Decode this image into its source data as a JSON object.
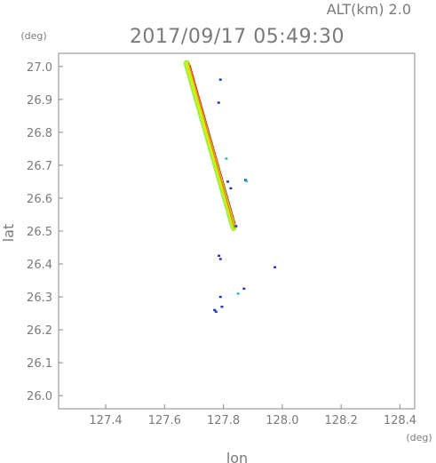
{
  "header": {
    "alt_label": "ALT(km) 2.0",
    "datetime": "2017/09/17 05:49:30"
  },
  "chart_data": {
    "type": "scatter",
    "xlabel": "lon",
    "ylabel": "lat",
    "x_unit": "(deg)",
    "y_unit": "(deg)",
    "xlim": [
      127.24,
      128.45
    ],
    "ylim": [
      25.96,
      27.04
    ],
    "x_ticks": [
      "127.4",
      "127.6",
      "127.8",
      "128.0",
      "128.2",
      "128.4"
    ],
    "y_ticks": [
      "26.0",
      "26.1",
      "26.2",
      "26.3",
      "26.4",
      "26.5",
      "26.6",
      "26.7",
      "26.8",
      "26.9",
      "27.0"
    ],
    "grid": false,
    "colors": {
      "band_green": "#88ee33",
      "band_yellow": "#ddee22",
      "edge_red": "#dd2222",
      "echo_blue": "#2233cc",
      "echo_cyan": "#22bbcc"
    },
    "series": [
      {
        "kind": "band",
        "points": [
          [
            127.675,
            27.01
          ],
          [
            127.835,
            26.51
          ]
        ],
        "colors": [
          "#99ee44",
          "#ccee22",
          "#ee8800"
        ]
      },
      {
        "kind": "echo",
        "points": [
          [
            127.79,
            26.96
          ],
          [
            127.784,
            26.89
          ],
          [
            127.81,
            26.72
          ],
          [
            127.815,
            26.65
          ],
          [
            127.825,
            26.63
          ],
          [
            127.843,
            26.515
          ],
          [
            127.875,
            26.655
          ],
          [
            127.878,
            26.652
          ],
          [
            127.785,
            26.425
          ],
          [
            127.79,
            26.415
          ],
          [
            127.975,
            26.39
          ],
          [
            127.79,
            26.3
          ],
          [
            127.85,
            26.31
          ],
          [
            127.87,
            26.325
          ],
          [
            127.795,
            26.27
          ],
          [
            127.77,
            26.26
          ],
          [
            127.775,
            26.255
          ]
        ]
      }
    ]
  }
}
